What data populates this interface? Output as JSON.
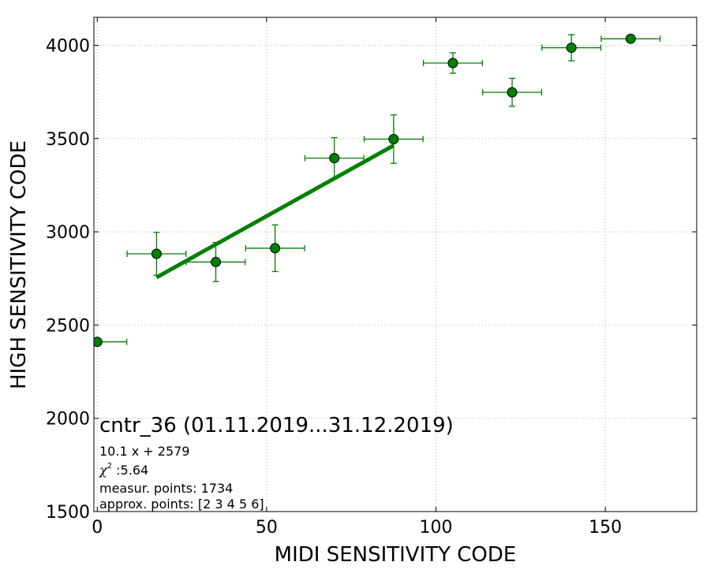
{
  "chart_data": {
    "type": "scatter",
    "xlabel": "MIDI SENSITIVITY CODE",
    "ylabel": "HIGH SENSITIVITY CODE",
    "xlim": [
      -1,
      177
    ],
    "ylim": [
      1500,
      4150
    ],
    "x_ticks": [
      0,
      50,
      100,
      150
    ],
    "y_ticks": [
      1500,
      2000,
      2500,
      3000,
      3500,
      4000
    ],
    "grid": true,
    "grid_style": "dotted",
    "colors": {
      "points": "#008000",
      "errorbars": "#008000",
      "fit": "#008000",
      "grid": "#b0b0b0"
    },
    "points": [
      {
        "x": 0,
        "y": 2410,
        "xerr": 8.7,
        "yerr": 0
      },
      {
        "x": 17.5,
        "y": 2882,
        "xerr": 8.7,
        "yerr": 115
      },
      {
        "x": 35,
        "y": 2838,
        "xerr": 8.7,
        "yerr": 105
      },
      {
        "x": 52.5,
        "y": 2912,
        "xerr": 8.7,
        "yerr": 125
      },
      {
        "x": 70,
        "y": 3395,
        "xerr": 8.7,
        "yerr": 110
      },
      {
        "x": 87.5,
        "y": 3497,
        "xerr": 8.7,
        "yerr": 130
      },
      {
        "x": 105,
        "y": 3905,
        "xerr": 8.7,
        "yerr": 55
      },
      {
        "x": 122.5,
        "y": 3748,
        "xerr": 8.7,
        "yerr": 75
      },
      {
        "x": 140,
        "y": 3987,
        "xerr": 8.7,
        "yerr": 70
      },
      {
        "x": 157.5,
        "y": 4035,
        "xerr": 8.7,
        "yerr": 0
      }
    ],
    "fit": {
      "slope": 10.1,
      "intercept": 2579,
      "x_range": [
        17.5,
        87.5
      ]
    },
    "annotation": {
      "title": "cntr_36 (01.11.2019...31.12.2019)",
      "equation": "10.1 x + 2579",
      "chi_symbol": "χ",
      "chi_exponent": "2",
      "chi_value": " :5.64",
      "measur_points": "measur. points: 1734",
      "approx_points": "approx. points: [2 3 4 5 6]"
    }
  }
}
